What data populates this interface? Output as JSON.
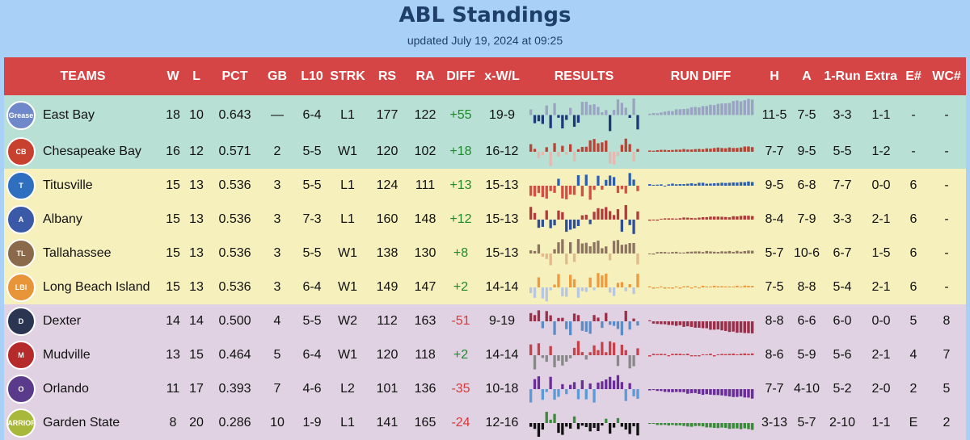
{
  "title": "ABL Standings",
  "subtitle": "updated July 19, 2024 at 09:25",
  "headers": [
    "TEAMS",
    "W",
    "L",
    "PCT",
    "GB",
    "L10",
    "STRK",
    "RS",
    "RA",
    "DIFF",
    "x-W/L",
    "RESULTS",
    "RUN DIFF",
    "H",
    "A",
    "1-Run",
    "Extra",
    "E#",
    "WC#"
  ],
  "teams": [
    {
      "name": "East Bay",
      "group": 1,
      "logo_text": "Grease",
      "logo_color": "#6f88c9",
      "W": "18",
      "L": "10",
      "PCT": "0.643",
      "GB": "—",
      "L10": "6-4",
      "STRK": "L1",
      "RS": "177",
      "RA": "122",
      "DIFF": "+55",
      "xWL": "19-9",
      "H": "11-5",
      "A": "7-5",
      "oneRun": "3-3",
      "extra": "1-1",
      "E": "-",
      "WC": "-",
      "color": "#9aa3c2",
      "dark": "#1e3a7a"
    },
    {
      "name": "Chesapeake Bay",
      "group": 1,
      "logo_text": "CB",
      "logo_color": "#c8402e",
      "W": "16",
      "L": "12",
      "PCT": "0.571",
      "GB": "2",
      "L10": "5-5",
      "STRK": "W1",
      "RS": "120",
      "RA": "102",
      "DIFF": "+18",
      "xWL": "16-12",
      "H": "7-7",
      "A": "9-5",
      "oneRun": "5-5",
      "extra": "1-2",
      "E": "-",
      "WC": "-",
      "color": "#b94335",
      "dark": "#e8b7b0"
    },
    {
      "name": "Titusville",
      "group": 2,
      "logo_text": "T",
      "logo_color": "#2f6fc0",
      "W": "15",
      "L": "13",
      "PCT": "0.536",
      "GB": "3",
      "L10": "5-5",
      "STRK": "L1",
      "RS": "124",
      "RA": "111",
      "DIFF": "+13",
      "xWL": "15-13",
      "H": "9-5",
      "A": "6-8",
      "oneRun": "7-7",
      "extra": "0-0",
      "E": "6",
      "WC": "-",
      "color": "#2d5fb0",
      "dark": "#d64d44"
    },
    {
      "name": "Albany",
      "group": 2,
      "logo_text": "A",
      "logo_color": "#3a5aa8",
      "W": "15",
      "L": "13",
      "PCT": "0.536",
      "GB": "3",
      "L10": "7-3",
      "STRK": "L1",
      "RS": "160",
      "RA": "148",
      "DIFF": "+12",
      "xWL": "15-13",
      "H": "8-4",
      "A": "7-9",
      "oneRun": "3-3",
      "extra": "2-1",
      "E": "6",
      "WC": "-",
      "color": "#b23a3a",
      "dark": "#2d4f9a"
    },
    {
      "name": "Tallahassee",
      "group": 2,
      "logo_text": "TL",
      "logo_color": "#8a6a4a",
      "W": "15",
      "L": "13",
      "PCT": "0.536",
      "GB": "3",
      "L10": "5-5",
      "STRK": "W1",
      "RS": "138",
      "RA": "130",
      "DIFF": "+8",
      "xWL": "15-13",
      "H": "5-7",
      "A": "10-6",
      "oneRun": "6-7",
      "extra": "1-5",
      "E": "6",
      "WC": "-",
      "color": "#8c7460",
      "dark": "#e3b98b"
    },
    {
      "name": "Long Beach Island",
      "group": 2,
      "logo_text": "LBI",
      "logo_color": "#e8953a",
      "W": "15",
      "L": "13",
      "PCT": "0.536",
      "GB": "3",
      "L10": "6-4",
      "STRK": "W1",
      "RS": "149",
      "RA": "147",
      "DIFF": "+2",
      "xWL": "14-14",
      "H": "7-5",
      "A": "8-8",
      "oneRun": "5-4",
      "extra": "2-1",
      "E": "6",
      "WC": "-",
      "color": "#ee9a3e",
      "dark": "#b7c7e3"
    },
    {
      "name": "Dexter",
      "group": 3,
      "logo_text": "D",
      "logo_color": "#2a3552",
      "W": "14",
      "L": "14",
      "PCT": "0.500",
      "GB": "4",
      "L10": "5-5",
      "STRK": "W2",
      "RS": "112",
      "RA": "163",
      "DIFF": "-51",
      "xWL": "9-19",
      "H": "8-8",
      "A": "6-6",
      "oneRun": "6-0",
      "extra": "0-0",
      "E": "5",
      "WC": "8",
      "color": "#9b2f4a",
      "dark": "#5a8cc8"
    },
    {
      "name": "Mudville",
      "group": 3,
      "logo_text": "M",
      "logo_color": "#b52a2a",
      "W": "13",
      "L": "15",
      "PCT": "0.464",
      "GB": "5",
      "L10": "6-4",
      "STRK": "W1",
      "RS": "120",
      "RA": "118",
      "DIFF": "+2",
      "xWL": "14-14",
      "H": "8-6",
      "A": "5-9",
      "oneRun": "5-6",
      "extra": "2-1",
      "E": "4",
      "WC": "7",
      "color": "#c8404a",
      "dark": "#888888"
    },
    {
      "name": "Orlando",
      "group": 3,
      "logo_text": "O",
      "logo_color": "#5a3a8a",
      "W": "11",
      "L": "17",
      "PCT": "0.393",
      "GB": "7",
      "L10": "4-6",
      "STRK": "L2",
      "RS": "101",
      "RA": "136",
      "DIFF": "-35",
      "xWL": "10-18",
      "H": "7-7",
      "A": "4-10",
      "oneRun": "5-2",
      "extra": "2-0",
      "E": "2",
      "WC": "5",
      "color": "#6a2d9a",
      "dark": "#5a9ad8"
    },
    {
      "name": "Garden State",
      "group": 3,
      "logo_text": "WARRIORS",
      "logo_color": "#a8b83a",
      "W": "8",
      "L": "20",
      "PCT": "0.286",
      "GB": "10",
      "L10": "1-9",
      "STRK": "L1",
      "RS": "141",
      "RA": "165",
      "DIFF": "-24",
      "xWL": "12-16",
      "H": "3-13",
      "A": "5-7",
      "oneRun": "2-10",
      "extra": "1-1",
      "E": "E",
      "WC": "2",
      "color": "#3a8a3a",
      "dark": "#111111"
    }
  ]
}
